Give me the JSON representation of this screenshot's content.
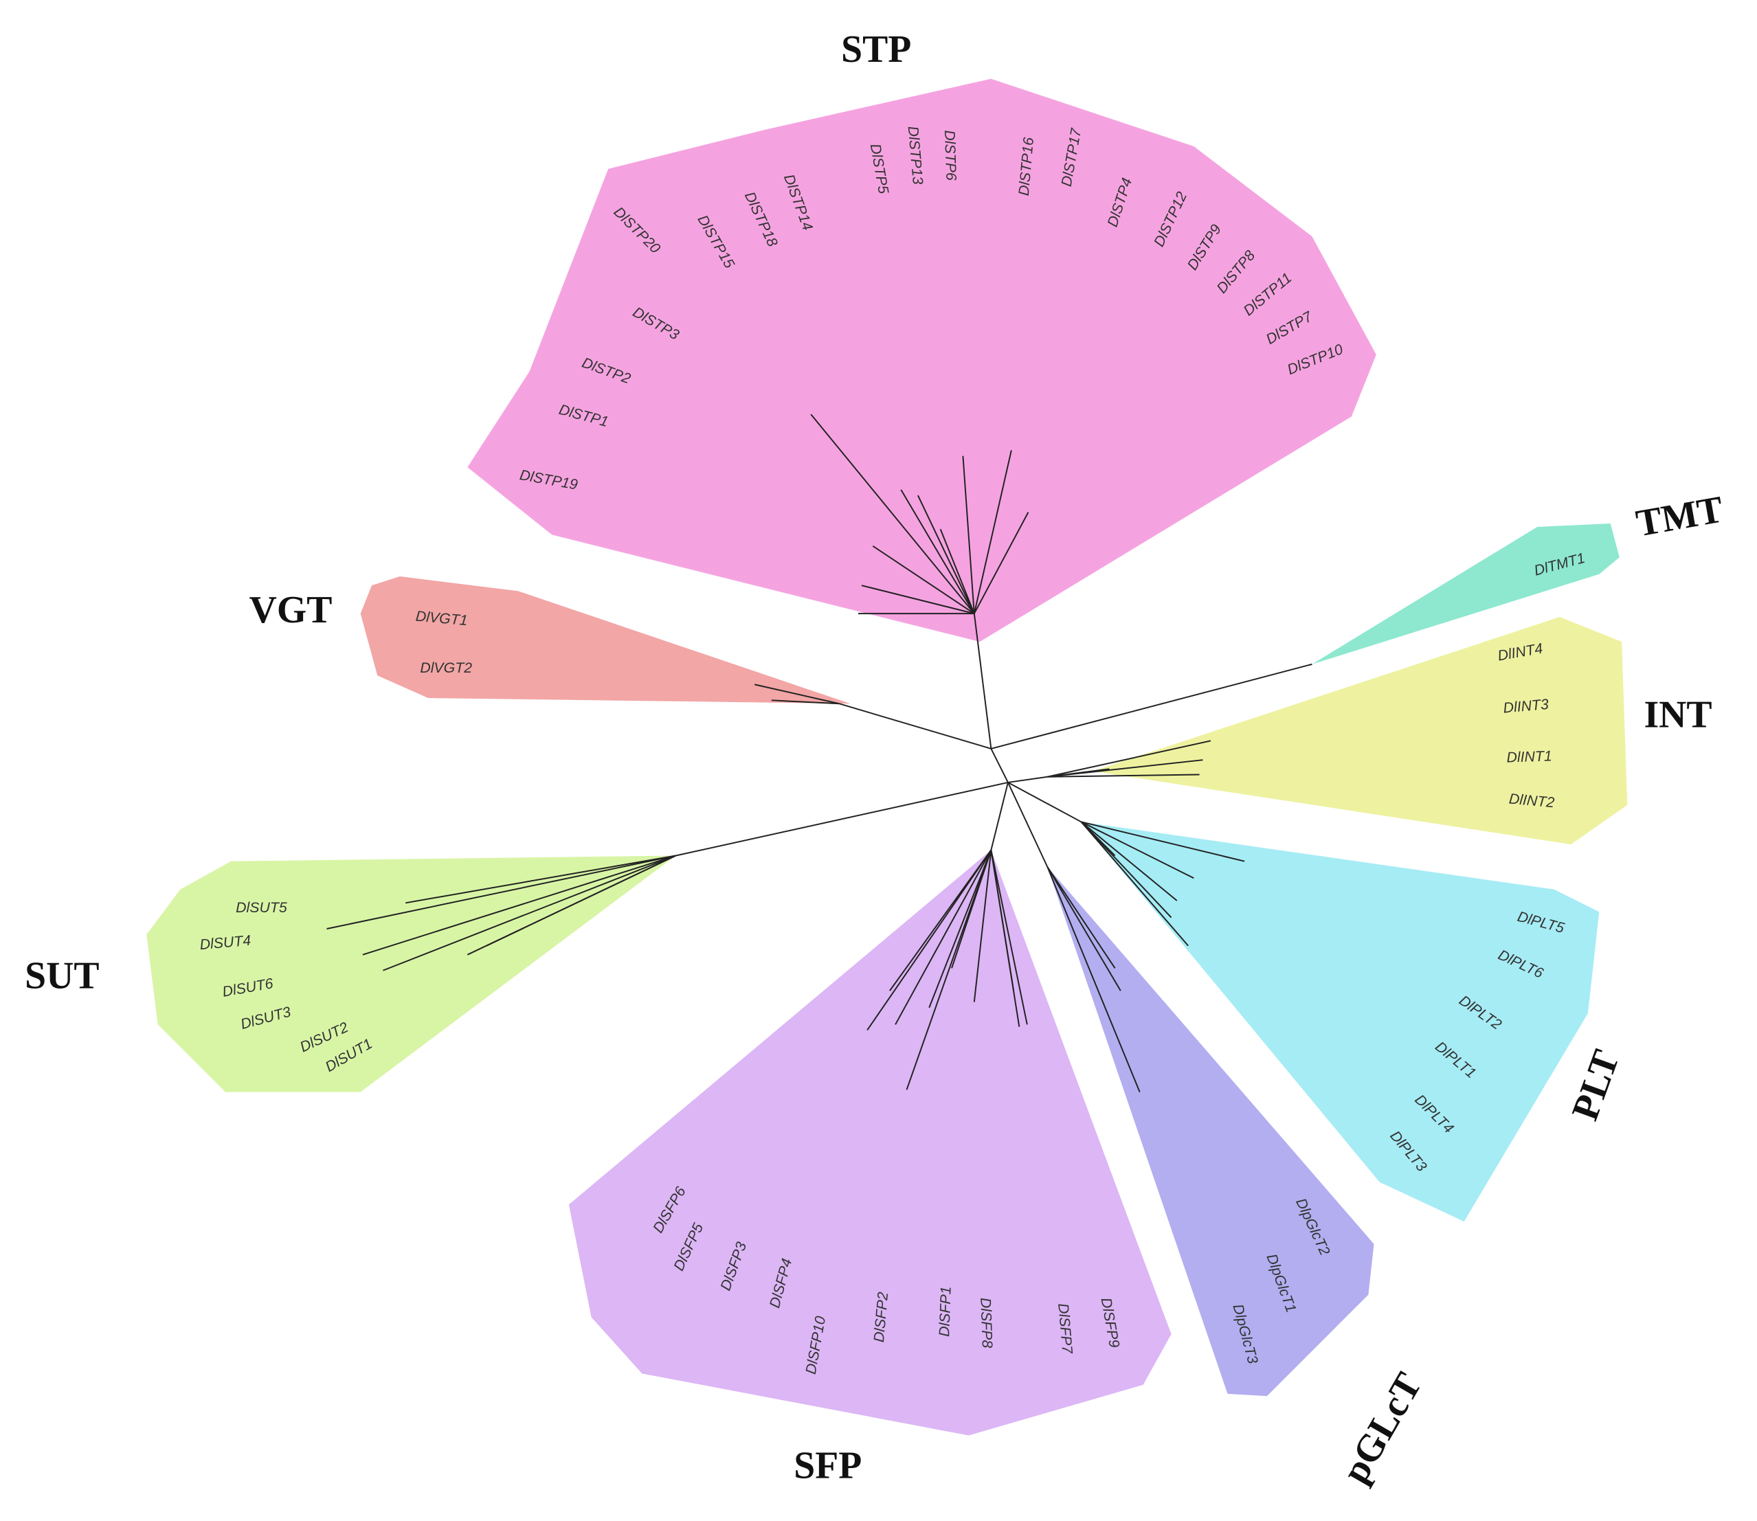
{
  "groups": [
    {
      "name": "STP",
      "members": [
        "DlSTP20",
        "DlSTP15",
        "DlSTP18",
        "DlSTP14",
        "DlSTP5",
        "DlSTP13",
        "DlSTP6",
        "DlSTP16",
        "DlSTP17",
        "DlSTP4",
        "DlSTP12",
        "DlSTP9",
        "DlSTP8",
        "DlSTP11",
        "DlSTP7",
        "DlSTP10",
        "DlSTP3",
        "DlSTP2",
        "DlSTP1",
        "DlSTP19"
      ]
    },
    {
      "name": "VGT",
      "members": [
        "DlVGT1",
        "DlVGT2"
      ]
    },
    {
      "name": "TMT",
      "members": [
        "DlTMT1"
      ]
    },
    {
      "name": "INT",
      "members": [
        "DlINT4",
        "DlINT3",
        "DlINT1",
        "DlINT2"
      ]
    },
    {
      "name": "PLT",
      "members": [
        "DlPLT5",
        "DlPLT6",
        "DlPLT2",
        "DlPLT1",
        "DlPLT4",
        "DlPLT3"
      ]
    },
    {
      "name": "pGLcT",
      "members": [
        "DlpGlcT2",
        "DlpGlcT1",
        "DlpGlcT3"
      ]
    },
    {
      "name": "SFP",
      "members": [
        "DlSFP6",
        "DlSFP5",
        "DlSFP3",
        "DlSFP4",
        "DlSFP10",
        "DlSFP2",
        "DlSFP1",
        "DlSFP8",
        "DlSFP7",
        "DlSFP9"
      ]
    },
    {
      "name": "SUT",
      "members": [
        "DlSUT5",
        "DlSUT4",
        "DlSUT6",
        "DlSUT3",
        "DlSUT2",
        "DlSUT1"
      ]
    }
  ]
}
